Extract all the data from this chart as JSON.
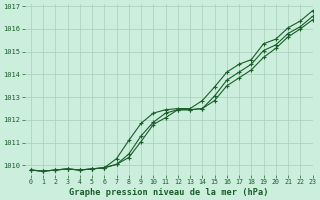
{
  "title": "Graphe pression niveau de la mer (hPa)",
  "background_color": "#cceedd",
  "grid_color": "#aaccbb",
  "line_color": "#1a5e2a",
  "xlim": [
    -0.5,
    23
  ],
  "ylim": [
    1009.6,
    1017.1
  ],
  "yticks": [
    1010,
    1011,
    1012,
    1013,
    1014,
    1015,
    1016,
    1017
  ],
  "xticks": [
    0,
    1,
    2,
    3,
    4,
    5,
    6,
    7,
    8,
    9,
    10,
    11,
    12,
    13,
    14,
    15,
    16,
    17,
    18,
    19,
    20,
    21,
    22,
    23
  ],
  "series": [
    [
      1009.8,
      1009.75,
      1009.8,
      1009.85,
      1009.8,
      1009.85,
      1009.9,
      1010.05,
      1010.35,
      1011.05,
      1011.8,
      1012.1,
      1012.45,
      1012.45,
      1012.5,
      1013.05,
      1013.75,
      1014.1,
      1014.45,
      1015.05,
      1015.3,
      1015.8,
      1016.1,
      1016.55
    ],
    [
      1009.8,
      1009.75,
      1009.8,
      1009.85,
      1009.8,
      1009.85,
      1009.9,
      1010.05,
      1010.5,
      1011.3,
      1011.9,
      1012.3,
      1012.45,
      1012.45,
      1012.5,
      1012.85,
      1013.5,
      1013.85,
      1014.2,
      1014.75,
      1015.15,
      1015.65,
      1016.0,
      1016.4
    ],
    [
      1009.8,
      1009.75,
      1009.8,
      1009.85,
      1009.8,
      1009.85,
      1009.9,
      1010.3,
      1011.1,
      1011.85,
      1012.3,
      1012.45,
      1012.5,
      1012.5,
      1012.85,
      1013.45,
      1014.1,
      1014.45,
      1014.65,
      1015.35,
      1015.55,
      1016.05,
      1016.35,
      1016.8
    ]
  ]
}
